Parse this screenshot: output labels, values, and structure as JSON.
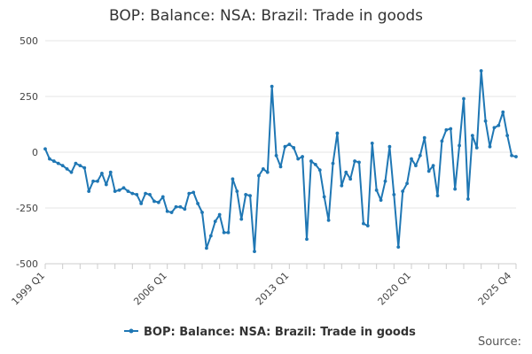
{
  "chart_data": {
    "type": "line",
    "title": "BOP: Balance: NSA: Brazil: Trade in goods",
    "xlabel": "",
    "ylabel": "",
    "ylim": [
      -500,
      500
    ],
    "y_ticks": [
      500,
      250,
      0,
      -250,
      -500
    ],
    "x_tick_labels": [
      "1999 Q1",
      "2006 Q1",
      "2013 Q1",
      "2020 Q1",
      "2025 Q4"
    ],
    "x_tick_indices": [
      0,
      28,
      56,
      84,
      107
    ],
    "legend": "bottom",
    "series": [
      {
        "name": "BOP: Balance: NSA: Brazil: Trade in goods",
        "color": "#1f77b4",
        "values": [
          15,
          -30,
          -40,
          -50,
          -60,
          -75,
          -90,
          -50,
          -60,
          -70,
          -175,
          -130,
          -130,
          -95,
          -145,
          -90,
          -175,
          -170,
          -160,
          -175,
          -185,
          -190,
          -230,
          -185,
          -190,
          -220,
          -225,
          -200,
          -265,
          -270,
          -245,
          -245,
          -255,
          -185,
          -180,
          -230,
          -270,
          -430,
          -375,
          -310,
          -280,
          -360,
          -360,
          -120,
          -175,
          -300,
          -190,
          -195,
          -445,
          -105,
          -75,
          -90,
          295,
          -15,
          -65,
          25,
          35,
          20,
          -30,
          -20,
          -390,
          -40,
          -55,
          -80,
          -200,
          -305,
          -50,
          85,
          -150,
          -90,
          -120,
          -40,
          -45,
          -320,
          -330,
          40,
          -170,
          -215,
          -130,
          25,
          -190,
          -425,
          -175,
          -140,
          -30,
          -60,
          -15,
          65,
          -85,
          -60,
          -195,
          50,
          100,
          105,
          -165,
          30,
          240,
          -210,
          75,
          20,
          365,
          140,
          25,
          110,
          120,
          180,
          75,
          -15,
          -20
        ]
      }
    ]
  },
  "source_label": "Source:"
}
